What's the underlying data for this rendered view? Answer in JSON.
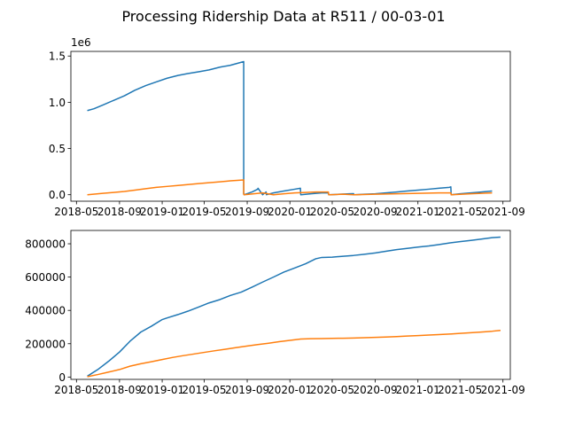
{
  "title": "Processing Ridership Data at R511 / 00-03-01",
  "colors": {
    "series1": "#1f77b4",
    "series2": "#ff7f0e",
    "axis": "#000000",
    "background": "#ffffff"
  },
  "chart_data": [
    {
      "type": "line",
      "title": "",
      "xlabel": "",
      "ylabel": "",
      "y_offset_label": "1e6",
      "y_multiplier": 1000000,
      "xlim": [
        "2018-04-15",
        "2021-09-22"
      ],
      "ylim": [
        -0.07,
        1.55
      ],
      "xticks": [
        "2018-05",
        "2018-09",
        "2019-01",
        "2019-05",
        "2019-09",
        "2020-01",
        "2020-05",
        "2020-09",
        "2021-01",
        "2021-05",
        "2021-09"
      ],
      "yticks": [
        0.0,
        0.5,
        1.0,
        1.5
      ],
      "ytick_labels": [
        "0.0",
        "0.5",
        "1.0",
        "1.5"
      ],
      "grid": false,
      "series": [
        {
          "color": "#1f77b4",
          "x": [
            "2018-06-01",
            "2018-06-20",
            "2018-07-15",
            "2018-08-15",
            "2018-09-15",
            "2018-10-15",
            "2018-11-15",
            "2018-12-15",
            "2019-01-15",
            "2019-02-15",
            "2019-03-15",
            "2019-04-15",
            "2019-05-15",
            "2019-06-15",
            "2019-07-15",
            "2019-08-22",
            "2019-08-22",
            "2019-08-23",
            "2019-09-15",
            "2019-10-01",
            "2019-10-02",
            "2019-10-15",
            "2019-10-25",
            "2019-10-26",
            "2019-11-15",
            "2019-12-15",
            "2020-01-15",
            "2020-01-31",
            "2020-02-01",
            "2020-03-01",
            "2020-04-01",
            "2020-04-20",
            "2020-04-21",
            "2020-05-20",
            "2020-06-20",
            "2020-07-01",
            "2020-07-02",
            "2020-08-01",
            "2020-09-01",
            "2020-10-01",
            "2020-11-01",
            "2020-12-01",
            "2021-01-01",
            "2021-02-01",
            "2021-03-01",
            "2021-04-01",
            "2021-04-05",
            "2021-04-06",
            "2021-05-01",
            "2021-06-01",
            "2021-07-01",
            "2021-08-01"
          ],
          "values": [
            0.91,
            0.93,
            0.97,
            1.02,
            1.07,
            1.13,
            1.18,
            1.22,
            1.26,
            1.29,
            1.31,
            1.33,
            1.35,
            1.38,
            1.4,
            1.44,
            0.01,
            0.0,
            0.03,
            0.06,
            0.07,
            0.0,
            0.03,
            0.0,
            0.02,
            0.04,
            0.06,
            0.07,
            0.0,
            0.01,
            0.02,
            0.02,
            0.0,
            0.005,
            0.01,
            0.012,
            0.0,
            0.005,
            0.01,
            0.02,
            0.03,
            0.04,
            0.05,
            0.06,
            0.07,
            0.08,
            0.085,
            0.0,
            0.01,
            0.02,
            0.03,
            0.04
          ]
        },
        {
          "color": "#ff7f0e",
          "x": [
            "2018-06-01",
            "2018-07-15",
            "2018-08-15",
            "2018-09-15",
            "2018-10-15",
            "2018-11-15",
            "2018-12-15",
            "2019-01-15",
            "2019-02-15",
            "2019-03-15",
            "2019-04-15",
            "2019-05-15",
            "2019-06-15",
            "2019-07-15",
            "2019-08-22",
            "2019-08-22",
            "2019-08-23",
            "2019-10-15",
            "2019-11-15",
            "2019-12-15",
            "2020-01-15",
            "2020-02-15",
            "2020-03-15",
            "2020-04-20",
            "2020-04-21",
            "2020-06-01",
            "2020-07-02",
            "2020-09-01",
            "2020-11-01",
            "2021-01-01",
            "2021-03-01",
            "2021-04-05",
            "2021-04-06",
            "2021-06-01",
            "2021-08-01"
          ],
          "values": [
            0.0,
            0.015,
            0.025,
            0.035,
            0.05,
            0.065,
            0.08,
            0.09,
            0.1,
            0.11,
            0.12,
            0.13,
            0.14,
            0.15,
            0.16,
            0.005,
            0.0,
            0.02,
            0.0,
            0.01,
            0.02,
            0.025,
            0.03,
            0.03,
            0.0,
            0.005,
            0.0,
            0.005,
            0.01,
            0.015,
            0.02,
            0.02,
            0.0,
            0.01,
            0.02
          ]
        }
      ]
    },
    {
      "type": "line",
      "title": "",
      "xlabel": "",
      "ylabel": "",
      "xlim": [
        "2018-04-15",
        "2021-09-22"
      ],
      "ylim": [
        -14000,
        880000
      ],
      "xticks": [
        "2018-05",
        "2018-09",
        "2019-01",
        "2019-05",
        "2019-09",
        "2020-01",
        "2020-05",
        "2020-09",
        "2021-01",
        "2021-05",
        "2021-09"
      ],
      "yticks": [
        0,
        200000,
        400000,
        600000,
        800000
      ],
      "ytick_labels": [
        "0",
        "200000",
        "400000",
        "600000",
        "800000"
      ],
      "grid": false,
      "series": [
        {
          "color": "#1f77b4",
          "x": [
            "2018-06-01",
            "2018-07-01",
            "2018-08-01",
            "2018-09-01",
            "2018-10-01",
            "2018-11-01",
            "2018-12-01",
            "2019-01-01",
            "2019-01-15",
            "2019-02-15",
            "2019-03-15",
            "2019-04-15",
            "2019-05-15",
            "2019-06-15",
            "2019-07-15",
            "2019-08-15",
            "2019-09-15",
            "2019-10-15",
            "2019-11-15",
            "2019-12-15",
            "2020-01-15",
            "2020-02-15",
            "2020-03-15",
            "2020-04-01",
            "2020-05-01",
            "2020-06-01",
            "2020-07-01",
            "2020-08-01",
            "2020-09-01",
            "2020-10-01",
            "2020-11-01",
            "2020-12-01",
            "2021-01-01",
            "2021-02-01",
            "2021-03-01",
            "2021-04-01",
            "2021-05-01",
            "2021-06-01",
            "2021-07-01",
            "2021-08-01",
            "2021-08-25"
          ],
          "values": [
            5000,
            45000,
            95000,
            150000,
            215000,
            270000,
            305000,
            345000,
            355000,
            375000,
            395000,
            420000,
            445000,
            465000,
            490000,
            510000,
            540000,
            570000,
            600000,
            630000,
            655000,
            680000,
            710000,
            718000,
            720000,
            725000,
            730000,
            737000,
            745000,
            755000,
            765000,
            772000,
            780000,
            787000,
            795000,
            805000,
            813000,
            820000,
            828000,
            837000,
            840000
          ]
        },
        {
          "color": "#ff7f0e",
          "x": [
            "2018-06-01",
            "2018-07-01",
            "2018-08-01",
            "2018-09-01",
            "2018-10-01",
            "2018-11-01",
            "2018-12-01",
            "2019-01-01",
            "2019-02-01",
            "2019-03-01",
            "2019-04-01",
            "2019-05-01",
            "2019-06-01",
            "2019-07-01",
            "2019-08-01",
            "2019-09-01",
            "2019-10-01",
            "2019-11-01",
            "2019-12-01",
            "2020-01-01",
            "2020-02-01",
            "2020-03-01",
            "2020-04-01",
            "2020-05-01",
            "2020-06-01",
            "2020-07-01",
            "2020-08-01",
            "2020-09-01",
            "2020-10-01",
            "2020-11-01",
            "2020-12-01",
            "2021-01-01",
            "2021-02-01",
            "2021-03-01",
            "2021-04-01",
            "2021-05-01",
            "2021-06-01",
            "2021-07-01",
            "2021-08-01",
            "2021-08-25"
          ],
          "values": [
            2000,
            15000,
            30000,
            45000,
            65000,
            80000,
            92000,
            105000,
            118000,
            128000,
            138000,
            148000,
            158000,
            167000,
            177000,
            186000,
            195000,
            203000,
            212000,
            220000,
            228000,
            230000,
            231000,
            232000,
            233000,
            234000,
            236000,
            238000,
            240000,
            243000,
            246000,
            249000,
            252000,
            255000,
            258000,
            262000,
            266000,
            270000,
            275000,
            280000
          ]
        }
      ]
    }
  ]
}
